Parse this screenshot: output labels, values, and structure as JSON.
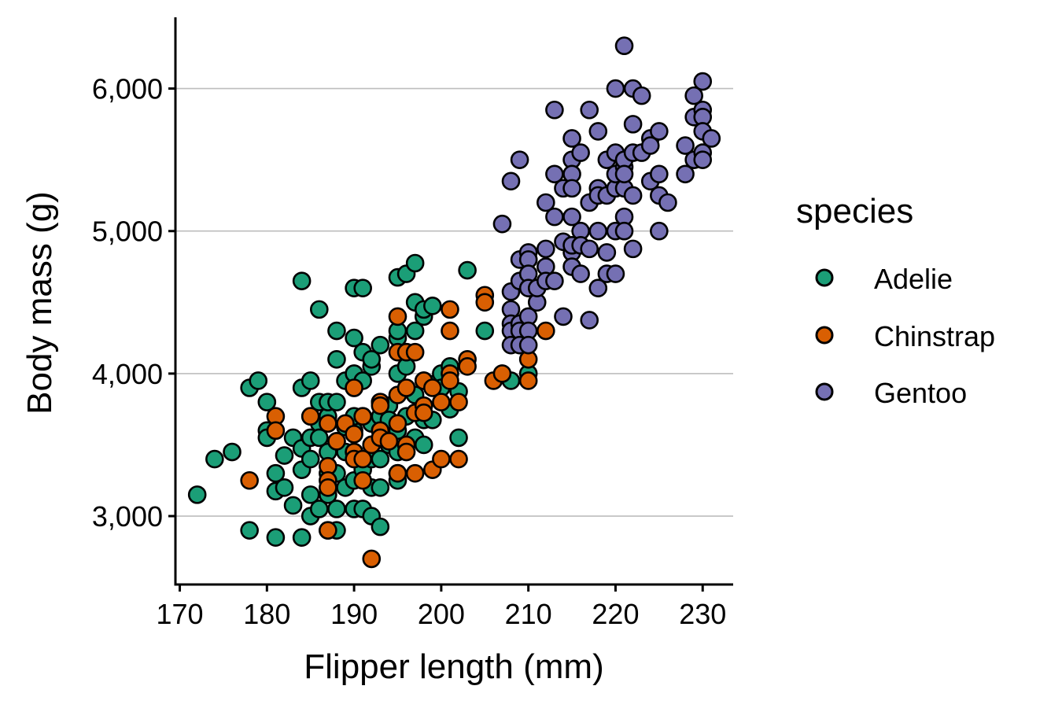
{
  "chart_data": {
    "type": "scatter",
    "xlabel": "Flipper length (mm)",
    "ylabel": "Body mass (g)",
    "xlim": [
      169.5,
      233.5
    ],
    "ylim": [
      2520,
      6500
    ],
    "xticks": [
      170,
      180,
      190,
      200,
      210,
      220,
      230
    ],
    "xtick_labels": [
      "170",
      "180",
      "190",
      "200",
      "210",
      "220",
      "230"
    ],
    "yticks": [
      3000,
      4000,
      5000,
      6000
    ],
    "ytick_labels": [
      "3,000",
      "4,000",
      "5,000",
      "6,000"
    ],
    "grid": "horizontal major",
    "legend": {
      "title": "species",
      "position": "right",
      "entries": [
        "Adelie",
        "Chinstrap",
        "Gentoo"
      ]
    },
    "series": [
      {
        "name": "Adelie",
        "color": "#1b9e77",
        "points": [
          [
            172,
            3150
          ],
          [
            174,
            3400
          ],
          [
            176,
            3450
          ],
          [
            178,
            3900
          ],
          [
            178,
            2900
          ],
          [
            179,
            3950
          ],
          [
            180,
            3600
          ],
          [
            180,
            3550
          ],
          [
            180,
            3800
          ],
          [
            181,
            3300
          ],
          [
            181,
            2850
          ],
          [
            181,
            3175
          ],
          [
            182,
            3200
          ],
          [
            182,
            3425
          ],
          [
            183,
            3075
          ],
          [
            183,
            3550
          ],
          [
            184,
            3325
          ],
          [
            184,
            2850
          ],
          [
            184,
            3475
          ],
          [
            184,
            3900
          ],
          [
            184,
            4650
          ],
          [
            185,
            3700
          ],
          [
            185,
            3550
          ],
          [
            185,
            3400
          ],
          [
            185,
            3150
          ],
          [
            185,
            3000
          ],
          [
            185,
            3950
          ],
          [
            186,
            3800
          ],
          [
            186,
            3650
          ],
          [
            186,
            3550
          ],
          [
            186,
            3050
          ],
          [
            186,
            4450
          ],
          [
            187,
            3700
          ],
          [
            187,
            3450
          ],
          [
            187,
            3300
          ],
          [
            187,
            3150
          ],
          [
            187,
            2900
          ],
          [
            187,
            3800
          ],
          [
            188,
            3525
          ],
          [
            188,
            3300
          ],
          [
            188,
            3050
          ],
          [
            188,
            2900
          ],
          [
            188,
            3800
          ],
          [
            188,
            4300
          ],
          [
            188,
            4100
          ],
          [
            189,
            3450
          ],
          [
            189,
            3200
          ],
          [
            189,
            3625
          ],
          [
            189,
            3950
          ],
          [
            190,
            3600
          ],
          [
            190,
            3450
          ],
          [
            190,
            3250
          ],
          [
            190,
            3050
          ],
          [
            190,
            3900
          ],
          [
            190,
            4000
          ],
          [
            190,
            4250
          ],
          [
            190,
            4600
          ],
          [
            190,
            3700
          ],
          [
            191,
            3700
          ],
          [
            191,
            3325
          ],
          [
            191,
            3050
          ],
          [
            191,
            3950
          ],
          [
            191,
            4150
          ],
          [
            191,
            4600
          ],
          [
            192,
            3500
          ],
          [
            192,
            3400
          ],
          [
            192,
            3200
          ],
          [
            192,
            3000
          ],
          [
            192,
            3650
          ],
          [
            192,
            4050
          ],
          [
            192,
            4100
          ],
          [
            193,
            3600
          ],
          [
            193,
            3400
          ],
          [
            193,
            3200
          ],
          [
            193,
            2925
          ],
          [
            193,
            3700
          ],
          [
            193,
            3800
          ],
          [
            193,
            4200
          ],
          [
            194,
            3500
          ],
          [
            194,
            3775
          ],
          [
            194,
            3675
          ],
          [
            195,
            3300
          ],
          [
            195,
            3250
          ],
          [
            195,
            3450
          ],
          [
            195,
            3600
          ],
          [
            195,
            4000
          ],
          [
            195,
            4250
          ],
          [
            195,
            4300
          ],
          [
            195,
            4675
          ],
          [
            196,
            3500
          ],
          [
            196,
            3700
          ],
          [
            196,
            4050
          ],
          [
            196,
            4700
          ],
          [
            196,
            4150
          ],
          [
            197,
            3550
          ],
          [
            197,
            3850
          ],
          [
            197,
            4300
          ],
          [
            197,
            4500
          ],
          [
            197,
            4775
          ],
          [
            198,
            3500
          ],
          [
            198,
            3950
          ],
          [
            198,
            4400
          ],
          [
            198,
            4450
          ],
          [
            198,
            3675
          ],
          [
            199,
            3675
          ],
          [
            199,
            3925
          ],
          [
            199,
            4475
          ],
          [
            200,
            4000
          ],
          [
            200,
            3900
          ],
          [
            201,
            3750
          ],
          [
            201,
            4050
          ],
          [
            202,
            3550
          ],
          [
            202,
            3875
          ],
          [
            203,
            4725
          ],
          [
            205,
            4300
          ],
          [
            208,
            3950
          ],
          [
            210,
            4000
          ]
        ]
      },
      {
        "name": "Chinstrap",
        "color": "#d95f02",
        "points": [
          [
            178,
            3250
          ],
          [
            181,
            3700
          ],
          [
            181,
            3600
          ],
          [
            185,
            3700
          ],
          [
            187,
            3350
          ],
          [
            187,
            3250
          ],
          [
            187,
            3200
          ],
          [
            187,
            2900
          ],
          [
            187,
            3650
          ],
          [
            188,
            3525
          ],
          [
            189,
            3650
          ],
          [
            190,
            3575
          ],
          [
            190,
            3450
          ],
          [
            190,
            3400
          ],
          [
            190,
            3900
          ],
          [
            191,
            3700
          ],
          [
            191,
            3400
          ],
          [
            191,
            3250
          ],
          [
            192,
            2700
          ],
          [
            192,
            3500
          ],
          [
            193,
            3800
          ],
          [
            193,
            3775
          ],
          [
            193,
            3600
          ],
          [
            193,
            3550
          ],
          [
            194,
            3525
          ],
          [
            195,
            3650
          ],
          [
            195,
            3300
          ],
          [
            195,
            3850
          ],
          [
            195,
            4150
          ],
          [
            195,
            4400
          ],
          [
            196,
            3500
          ],
          [
            196,
            3450
          ],
          [
            196,
            3900
          ],
          [
            196,
            4150
          ],
          [
            197,
            3725
          ],
          [
            197,
            3300
          ],
          [
            197,
            4150
          ],
          [
            198,
            3950
          ],
          [
            198,
            3775
          ],
          [
            198,
            3725
          ],
          [
            199,
            3900
          ],
          [
            199,
            3325
          ],
          [
            200,
            3800
          ],
          [
            200,
            3400
          ],
          [
            201,
            4000
          ],
          [
            201,
            3950
          ],
          [
            201,
            4450
          ],
          [
            201,
            4300
          ],
          [
            202,
            3800
          ],
          [
            202,
            3400
          ],
          [
            203,
            4100
          ],
          [
            203,
            4050
          ],
          [
            205,
            4550
          ],
          [
            205,
            4500
          ],
          [
            206,
            3950
          ],
          [
            207,
            4000
          ],
          [
            210,
            4800
          ],
          [
            210,
            4100
          ],
          [
            210,
            3950
          ],
          [
            212,
            4300
          ]
        ]
      },
      {
        "name": "Gentoo",
        "color": "#7570b3",
        "points": [
          [
            207,
            5050
          ],
          [
            208,
            4575
          ],
          [
            208,
            4450
          ],
          [
            208,
            4350
          ],
          [
            208,
            4300
          ],
          [
            208,
            4200
          ],
          [
            208,
            5350
          ],
          [
            209,
            5500
          ],
          [
            209,
            4800
          ],
          [
            209,
            4650
          ],
          [
            209,
            4350
          ],
          [
            209,
            4300
          ],
          [
            209,
            4200
          ],
          [
            210,
            4850
          ],
          [
            210,
            4800
          ],
          [
            210,
            4700
          ],
          [
            210,
            4600
          ],
          [
            210,
            4400
          ],
          [
            210,
            4300
          ],
          [
            210,
            4200
          ],
          [
            211,
            4500
          ],
          [
            211,
            4600
          ],
          [
            212,
            5200
          ],
          [
            212,
            4875
          ],
          [
            212,
            4750
          ],
          [
            212,
            4650
          ],
          [
            213,
            5850
          ],
          [
            213,
            5400
          ],
          [
            213,
            5100
          ],
          [
            213,
            4650
          ],
          [
            214,
            5300
          ],
          [
            214,
            4925
          ],
          [
            214,
            4400
          ],
          [
            215,
            5650
          ],
          [
            215,
            5500
          ],
          [
            215,
            5400
          ],
          [
            215,
            5300
          ],
          [
            215,
            5100
          ],
          [
            215,
            4850
          ],
          [
            215,
            4750
          ],
          [
            215,
            4900
          ],
          [
            216,
            5550
          ],
          [
            216,
            5000
          ],
          [
            216,
            4700
          ],
          [
            216,
            4900
          ],
          [
            217,
            5850
          ],
          [
            217,
            5200
          ],
          [
            217,
            4875
          ],
          [
            217,
            4375
          ],
          [
            218,
            5700
          ],
          [
            218,
            5300
          ],
          [
            218,
            5000
          ],
          [
            218,
            4600
          ],
          [
            218,
            5250
          ],
          [
            219,
            5500
          ],
          [
            219,
            5250
          ],
          [
            219,
            4850
          ],
          [
            219,
            4700
          ],
          [
            220,
            6000
          ],
          [
            220,
            5550
          ],
          [
            220,
            5300
          ],
          [
            220,
            5000
          ],
          [
            220,
            4700
          ],
          [
            220,
            5400
          ],
          [
            221,
            6300
          ],
          [
            221,
            5450
          ],
          [
            221,
            5300
          ],
          [
            221,
            5100
          ],
          [
            221,
            5000
          ],
          [
            221,
            5500
          ],
          [
            221,
            5400
          ],
          [
            222,
            6000
          ],
          [
            222,
            5750
          ],
          [
            222,
            5550
          ],
          [
            222,
            5250
          ],
          [
            222,
            4875
          ],
          [
            223,
            5950
          ],
          [
            223,
            5550
          ],
          [
            224,
            5650
          ],
          [
            224,
            5350
          ],
          [
            224,
            5600
          ],
          [
            225,
            5700
          ],
          [
            225,
            5400
          ],
          [
            225,
            5250
          ],
          [
            225,
            5000
          ],
          [
            226,
            5200
          ],
          [
            228,
            5600
          ],
          [
            228,
            5400
          ],
          [
            229,
            5950
          ],
          [
            229,
            5800
          ],
          [
            229,
            5500
          ],
          [
            230,
            6050
          ],
          [
            230,
            5850
          ],
          [
            230,
            5800
          ],
          [
            230,
            5700
          ],
          [
            230,
            5550
          ],
          [
            230,
            5500
          ],
          [
            231,
            5650
          ]
        ]
      }
    ]
  }
}
